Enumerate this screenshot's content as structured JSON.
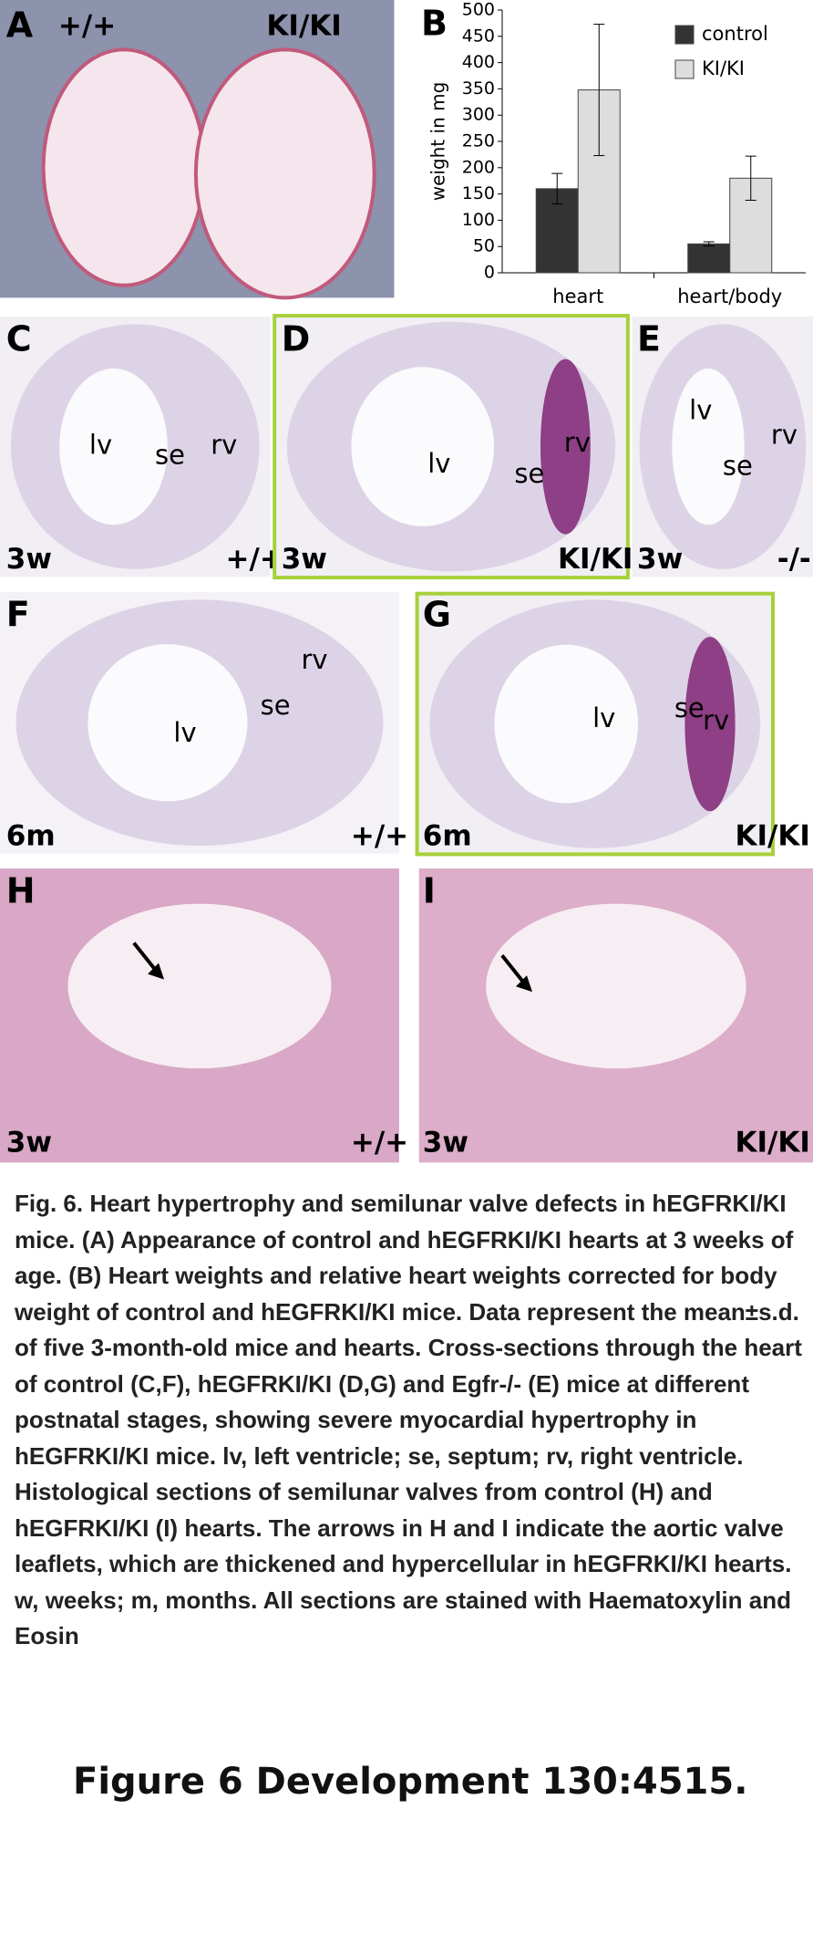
{
  "panels": [
    {
      "letter": "A",
      "labels": [
        "+/+",
        "KI/KI"
      ]
    },
    {
      "letter": "C",
      "labels": [
        "lv",
        "se",
        "rv",
        "3w",
        "+/+"
      ]
    },
    {
      "letter": "D",
      "labels": [
        "lv",
        "se",
        "rv",
        "3w",
        "KI/KI"
      ]
    },
    {
      "letter": "E",
      "labels": [
        "lv",
        "se",
        "rv",
        "3w",
        "-/-"
      ]
    },
    {
      "letter": "F",
      "labels": [
        "rv",
        "se",
        "lv",
        "6m",
        "+/+"
      ]
    },
    {
      "letter": "G",
      "labels": [
        "lv",
        "se",
        "rv",
        "6m",
        "KI/KI"
      ]
    },
    {
      "letter": "H",
      "labels": [
        "3w",
        "+/+"
      ]
    },
    {
      "letter": "I",
      "labels": [
        "3w",
        "KI/KI"
      ]
    }
  ],
  "chart_data": {
    "type": "bar",
    "panel_letter": "B",
    "y_label": "weight in mg",
    "categories": [
      "heart",
      "heart/body"
    ],
    "series": [
      {
        "name": "control",
        "color": "#333333",
        "values": [
          160,
          55
        ],
        "errors": [
          29,
          4
        ]
      },
      {
        "name": "KI/KI",
        "color": "#dddddd",
        "values": [
          348,
          180
        ],
        "errors": [
          125,
          42
        ]
      }
    ],
    "ylim": [
      0,
      500
    ],
    "yticks": [
      0,
      50,
      100,
      150,
      200,
      250,
      300,
      350,
      400,
      450,
      500
    ]
  },
  "caption": "Fig. 6. Heart hypertrophy and semilunar valve defects in hEGFRKI/KI mice. (A) Appearance of control and hEGFRKI/KI hearts at 3 weeks of age. (B) Heart weights and relative heart weights corrected for body weight of control and hEGFRKI/KI mice. Data represent the mean±s.d. of five 3-month-old mice and hearts. Cross-sections through the heart of control (C,F), hEGFRKI/KI (D,G) and Egfr-/- (E) mice at different postnatal stages, showing severe myocardial hypertrophy in hEGFRKI/KI mice. lv, left ventricle; se, septum; rv, right ventricle. Histological sections of semilunar valves from control (H) and hEGFRKI/KI (I) hearts. The arrows in H and I indicate the aortic valve leaflets, which are thickened and hypercellular in hEGFRKI/KI hearts. w, weeks; m, months. All sections are stained with Haematoxylin and Eosin",
  "footer": "Figure 6 Development 130:4515."
}
